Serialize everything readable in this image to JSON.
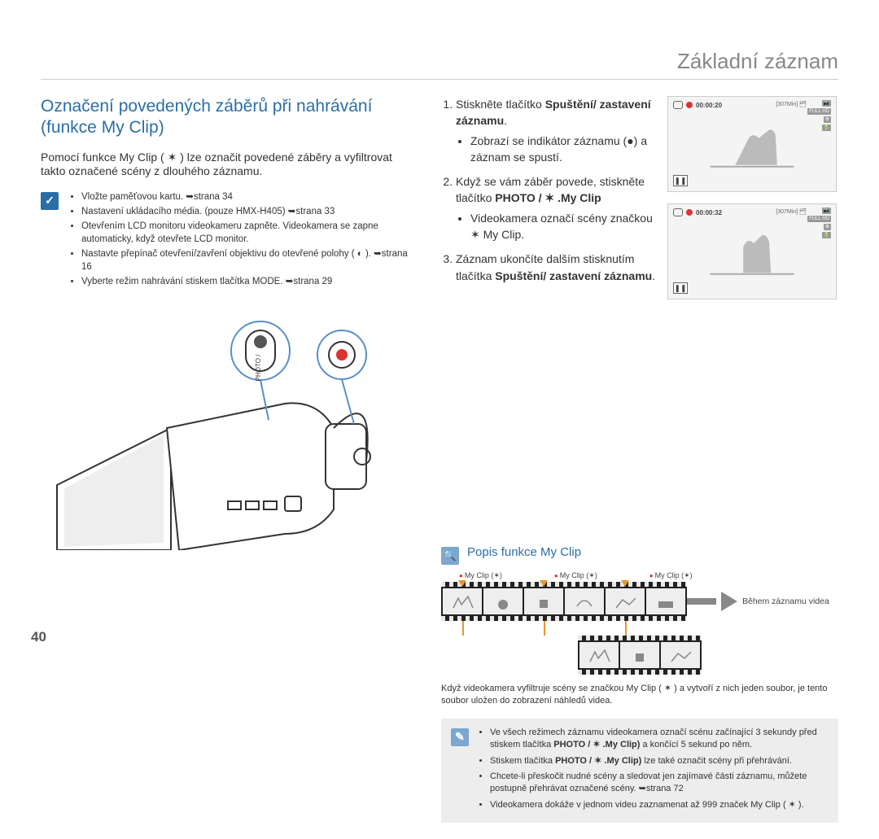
{
  "header": "Základní záznam",
  "pageNumber": "40",
  "sectionTitle": "Označení povedených záběrů při nahrávání (funkce My Clip)",
  "intro": "Pomocí funkce My Clip ( ✶ ) lze označit povedené záběry a vyfiltrovat takto označené scény z dlouhého záznamu.",
  "checklist": [
    "Vložte paměťovou kartu. ➥strana 34",
    "Nastavení ukládacího média. (pouze HMX-H405) ➥strana 33",
    "Otevřením LCD monitoru videokameru zapněte. Videokamera se zapne automaticky, když otevřete LCD monitor.",
    "Nastavte přepínač otevření/zavření objektivu do otevřené polohy ( ◐ ). ➥strana 16",
    "Vyberte režim nahrávání stiskem tlačítka MODE. ➥strana 29"
  ],
  "steps": [
    {
      "lead": "Stiskněte tlačítko ",
      "bold": "Spuštění/ zastavení záznamu",
      "tail": ".",
      "sub": [
        "Zobrazí se indikátor záznamu (●) a záznam se spustí."
      ]
    },
    {
      "lead": "Když se vám záběr povede, stiskněte tlačítko ",
      "bold": "PHOTO / ✶ .My Clip",
      "tail": "",
      "sub": [
        "Videokamera označí scény značkou ✶ My Clip."
      ]
    },
    {
      "lead": "Záznam ukončíte dalším stisknutím tlačítka ",
      "bold": "Spuštění/ zastavení záznamu",
      "tail": ".",
      "sub": []
    }
  ],
  "screenshots": [
    {
      "time": "00:00:20",
      "min": "[307Min]"
    },
    {
      "time": "00:00:32",
      "min": "[307Min]"
    }
  ],
  "infoTitle": "Popis funkce My Clip",
  "fsLabel": "My Clip (✶)",
  "fsRight": "Během záznamu videa",
  "caption2": "Když videokamera vyfiltruje scény se značkou My Clip ( ✶ ) a vytvoří z nich jeden soubor, je tento soubor uložen do zobrazení náhledů videa.",
  "notes": [
    "Ve všech režimech záznamu videokamera označí scénu začínající 3 sekundy před stiskem tlačítka PHOTO / ✶ (My Clip) a končící 5 sekund po něm.",
    "Stiskem tlačítka PHOTO / ✶ (My Clip) lze také označit scény při přehrávání.",
    "Chcete-li přeskočit nudné scény a sledovat jen zajímavé části záznamu, můžete postupně přehrávat označené scény. ➥strana 72",
    "Videokamera dokáže v jednom videu zaznamenat až 999 značek My Clip ( ✶ )."
  ],
  "colors": {
    "accent": "#2a6ea8",
    "headerGrey": "#888888",
    "noteBg": "#ededed",
    "orange": "#e8962f"
  }
}
